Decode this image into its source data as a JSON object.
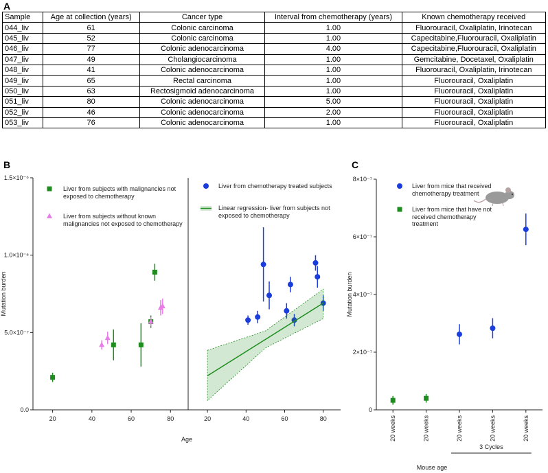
{
  "panel_labels": [
    "A",
    "B",
    "C"
  ],
  "table": {
    "columns": [
      "Sample",
      "Age at collection (years)",
      "Cancer type",
      "Interval from chemotherapy (years)",
      "Known chemotherapy received"
    ],
    "rows": [
      [
        "044_liv",
        "61",
        "Colonic carcinoma",
        "1.00",
        "Fluorouracil,  Oxaliplatin, Irinotecan"
      ],
      [
        "045_liv",
        "52",
        "Colonic carcinoma",
        "1.00",
        "Capecitabine,Fluorouracil, Oxaliplatin"
      ],
      [
        "046_liv",
        "77",
        "Colonic adenocarcinoma",
        "4.00",
        "Capecitabine,Fluorouracil, Oxaliplatin"
      ],
      [
        "047_liv",
        "49",
        "Cholangiocarcinoma",
        "1.00",
        "Gemcitabine, Docetaxel, Oxaliplatin"
      ],
      [
        "048_liv",
        "41",
        "Colonic adenocarcinoma",
        "1.00",
        "Fluorouracil,  Oxaliplatin, Irinotecan"
      ],
      [
        "049_liv",
        "65",
        "Rectal carcinoma",
        "1.00",
        "Fluorouracil,  Oxaliplatin"
      ],
      [
        "050_liv",
        "63",
        "Rectosigmoid adenocarcinoma",
        "1.00",
        "Fluorouracil,  Oxaliplatin"
      ],
      [
        "051_liv",
        "80",
        "Colonic adenocarcinoma",
        "5.00",
        "Fluorouracil,  Oxaliplatin"
      ],
      [
        "052_liv",
        "46",
        "Colonic adenocarcinoma",
        "2.00",
        "Fluorouracil,  Oxaliplatin"
      ],
      [
        "053_liv",
        "76",
        "Colonic adenocarcinoma",
        "1.00",
        "Fluorouracil,  Oxaliplatin"
      ]
    ]
  },
  "chart_data": [
    {
      "type": "scatter",
      "y_label": "Mutation burden",
      "xlim": [
        10,
        89
      ],
      "xticks": [
        20,
        40,
        60,
        80
      ],
      "ylim": [
        0,
        1.5e-06
      ],
      "yticks": [
        {
          "value": 0,
          "label": "0.0"
        },
        {
          "value": 5e-07,
          "label": "5.0×10⁻⁷"
        },
        {
          "value": 1e-06,
          "label": "1.0×10⁻⁶"
        },
        {
          "value": 1.5e-06,
          "label": "1.5×10⁻⁶"
        }
      ],
      "series": [
        {
          "name": "Liver from subjects with malignancies not exposed to chemotherapy",
          "color": "#1e8c1e",
          "marker": "square",
          "x": [
            20,
            51,
            65,
            70,
            72
          ],
          "values": [
            2.1e-07,
            4.2e-07,
            4.2e-07,
            5.7e-07,
            8.9e-07
          ],
          "errors": [
            3e-08,
            1e-07,
            1.4e-07,
            4e-08,
            5.5e-08
          ]
        },
        {
          "name": "Liver from subjects without known malignancies not exposed to chemotherapy",
          "color": "#e87de8",
          "marker": "triangle",
          "x": [
            45,
            48,
            70,
            75,
            76
          ],
          "values": [
            4.2e-07,
            4.65e-07,
            5.7e-07,
            6.6e-07,
            6.7e-07
          ],
          "errors": [
            3e-08,
            4e-08,
            3e-08,
            5e-08,
            5e-08
          ]
        }
      ]
    },
    {
      "type": "scatter",
      "x_label": "Age",
      "xlim": [
        10,
        89
      ],
      "xticks": [
        20,
        40,
        60,
        80
      ],
      "ylim": [
        0,
        1.5e-06
      ],
      "series": [
        {
          "name": "Liver from chemotherapy treated subjects",
          "color": "#1b3ddb",
          "marker": "circle",
          "x": [
            41,
            46,
            49,
            52,
            61,
            63,
            65,
            76,
            77,
            80
          ],
          "values": [
            5.8e-07,
            6e-07,
            9.4e-07,
            7.4e-07,
            6.4e-07,
            8.1e-07,
            5.8e-07,
            9.5e-07,
            8.6e-07,
            6.9e-07
          ],
          "errors": [
            3e-08,
            4e-08,
            2.4e-07,
            9e-08,
            5e-08,
            5e-08,
            4e-08,
            5e-08,
            7e-08,
            5e-08
          ]
        },
        {
          "name": "Linear regression- liver from subjects not exposed to chemotherapy",
          "color": "#1e8c1e",
          "marker": "line",
          "x": [
            20,
            50,
            80
          ],
          "values": [
            2.2e-07,
            4.55e-07,
            6.9e-07
          ],
          "lower": [
            6e-08,
            4e-07,
            5.9e-07
          ],
          "upper": [
            3.85e-07,
            5.1e-07,
            7.8e-07
          ]
        }
      ]
    },
    {
      "type": "scatter",
      "y_label": "Mutation burden",
      "x_label": "Mouse age",
      "annotation": "3 Cycles",
      "categories": [
        "20 weeks",
        "20 weeks",
        "20 weeks",
        "20 weeks",
        "20 weeks"
      ],
      "ylim": [
        0,
        8e-07
      ],
      "yticks": [
        {
          "value": 0,
          "label": "0"
        },
        {
          "value": 2e-07,
          "label": "2×10⁻⁷"
        },
        {
          "value": 4e-07,
          "label": "4×10⁻⁷"
        },
        {
          "value": 6e-07,
          "label": "6×10⁻⁷"
        },
        {
          "value": 8e-07,
          "label": "8×10⁻⁷"
        }
      ],
      "series": [
        {
          "name": "Liver from mice that received chemotherapy treatment",
          "color": "#1b3ddb",
          "marker": "circle",
          "values": [
            null,
            null,
            2.62e-07,
            2.83e-07,
            6.26e-07
          ],
          "errors": [
            null,
            null,
            3.5e-08,
            3.5e-08,
            5.5e-08
          ]
        },
        {
          "name": "Liver from mice that have not received chemotherapy treatment",
          "color": "#1e8c1e",
          "marker": "square",
          "values": [
            3.3e-08,
            4e-08,
            null,
            null,
            null
          ],
          "errors": [
            1.5e-08,
            1.5e-08,
            null,
            null,
            null
          ]
        }
      ]
    }
  ]
}
